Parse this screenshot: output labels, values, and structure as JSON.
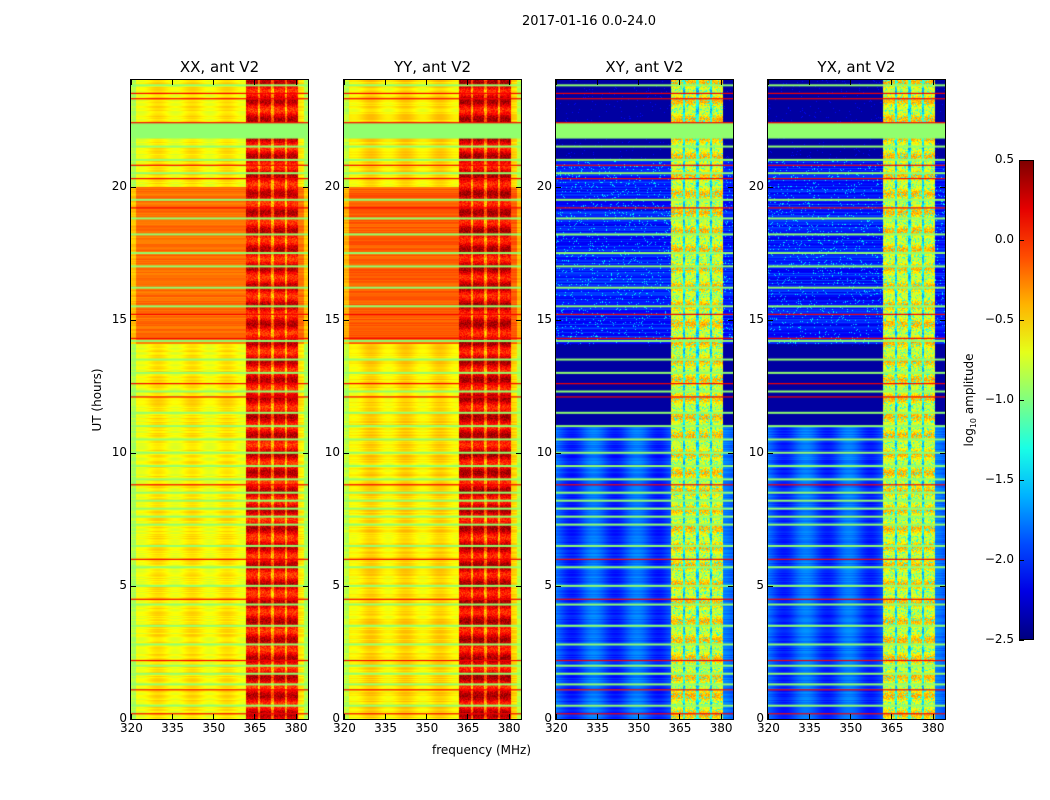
{
  "chart_data": {
    "type": "heatmap",
    "title": "2017-01-16 0.0-24.0",
    "xlabel": "frequency (MHz)",
    "ylabel": "UT (hours)",
    "xlim": [
      320,
      384.5
    ],
    "ylim": [
      0,
      24
    ],
    "xticks": [
      320,
      335,
      350,
      365,
      380
    ],
    "yticks": [
      0,
      5,
      10,
      15,
      20
    ],
    "colormap": "jet",
    "colorbar": {
      "label_main": "log",
      "label_sub": "10",
      "label_rest": " amplitude",
      "range": [
        -2.5,
        0.5
      ],
      "ticks": [
        "0.5",
        "0.0",
        "−0.5",
        "−1.0",
        "−1.5",
        "−2.0",
        "−2.5"
      ],
      "tick_values": [
        0.5,
        0.0,
        -0.5,
        -1.0,
        -1.5,
        -2.0,
        -2.5
      ]
    },
    "panels": [
      {
        "title": "XX, ant V2",
        "kind": "auto",
        "base": -0.6,
        "active_hours": [
          14.1,
          20.0
        ],
        "active_level": -0.2,
        "band_mhz": [
          362,
          381
        ],
        "band_level": 0.15
      },
      {
        "title": "YY, ant V2",
        "kind": "auto",
        "base": -0.55,
        "active_hours": [
          14.1,
          20.0
        ],
        "active_level": -0.15,
        "band_mhz": [
          362,
          381
        ],
        "band_level": 0.2
      },
      {
        "title": "XY, ant V2",
        "kind": "cross",
        "base": -2.1,
        "active_hours": [
          14.1,
          21.0
        ],
        "active_level": -2.0,
        "band_mhz": [
          362,
          381
        ],
        "band_level": -0.6
      },
      {
        "title": "YX, ant V2",
        "kind": "cross",
        "base": -2.1,
        "active_hours": [
          14.1,
          21.0
        ],
        "active_level": -2.0,
        "band_mhz": [
          362,
          381
        ],
        "band_level": -0.6
      }
    ],
    "flag_rows_green_hours": [
      0.5,
      1.3,
      1.7,
      2.0,
      2.8,
      3.5,
      4.3,
      5.0,
      5.7,
      6.5,
      7.3,
      7.6,
      7.9,
      8.2,
      8.5,
      9.0,
      9.5,
      10.0,
      10.5,
      11.0,
      11.5,
      12.3,
      13.0,
      13.5,
      14.2,
      15.5,
      16.2,
      17.0,
      17.5,
      18.2,
      18.8,
      19.5,
      20.5,
      21.0,
      21.5,
      23.8
    ],
    "flag_rows_red_hours": [
      0.2,
      1.1,
      2.2,
      4.5,
      6.0,
      8.8,
      12.1,
      12.6,
      14.3,
      15.2,
      19.2,
      20.3,
      20.8,
      22.4,
      23.3,
      23.5
    ],
    "flag_block_green_hours": [
      21.8,
      22.4
    ]
  }
}
